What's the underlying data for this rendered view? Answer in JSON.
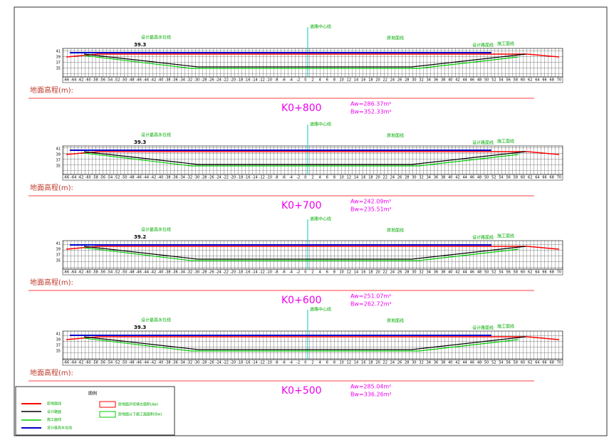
{
  "axis": {
    "ground_label": "地面高程(m):",
    "yticks": [
      41,
      39,
      37,
      35
    ],
    "xticks": [
      -66,
      -64,
      -62,
      -60,
      -58,
      -56,
      -54,
      -52,
      -50,
      -48,
      -46,
      -44,
      -42,
      -40,
      -38,
      -36,
      -34,
      -32,
      -30,
      -28,
      -26,
      -24,
      -22,
      -20,
      -18,
      -16,
      -14,
      -12,
      -10,
      -8,
      -6,
      -4,
      -2,
      0,
      2,
      4,
      6,
      8,
      10,
      12,
      14,
      16,
      18,
      20,
      22,
      24,
      26,
      28,
      30,
      32,
      34,
      36,
      38,
      40,
      42,
      44,
      46,
      48,
      50,
      52,
      54,
      56,
      58,
      60,
      62,
      64,
      66,
      68,
      70
    ]
  },
  "annotations": {
    "center": "道路中心线",
    "design": "设计路面线",
    "original": "原地面线",
    "construct": "施工面线",
    "water": "设计最高水位线"
  },
  "sections": [
    {
      "station": "K0+800",
      "aw": "Aw=286.37m²",
      "bw": "Bw=352.33m²",
      "level": "39.3"
    },
    {
      "station": "K0+700",
      "aw": "Aw=242.09m²",
      "bw": "Bw=235.51m²",
      "level": "39.3"
    },
    {
      "station": "K0+600",
      "aw": "Aw=251.07m²",
      "bw": "Bw=262.72m²",
      "level": "39.2"
    },
    {
      "station": "K0+500",
      "aw": "Aw=285.04m²",
      "bw": "Bw=336.26m²",
      "level": "39.3"
    }
  ],
  "legend": {
    "title": "图例",
    "items": [
      "原地面线",
      "设计路面",
      "施工面线",
      "设计最高水位线"
    ],
    "areas": [
      "原地面开挖填方面积(Aw)",
      "原地面以下施工面面积(Bw)"
    ]
  }
}
